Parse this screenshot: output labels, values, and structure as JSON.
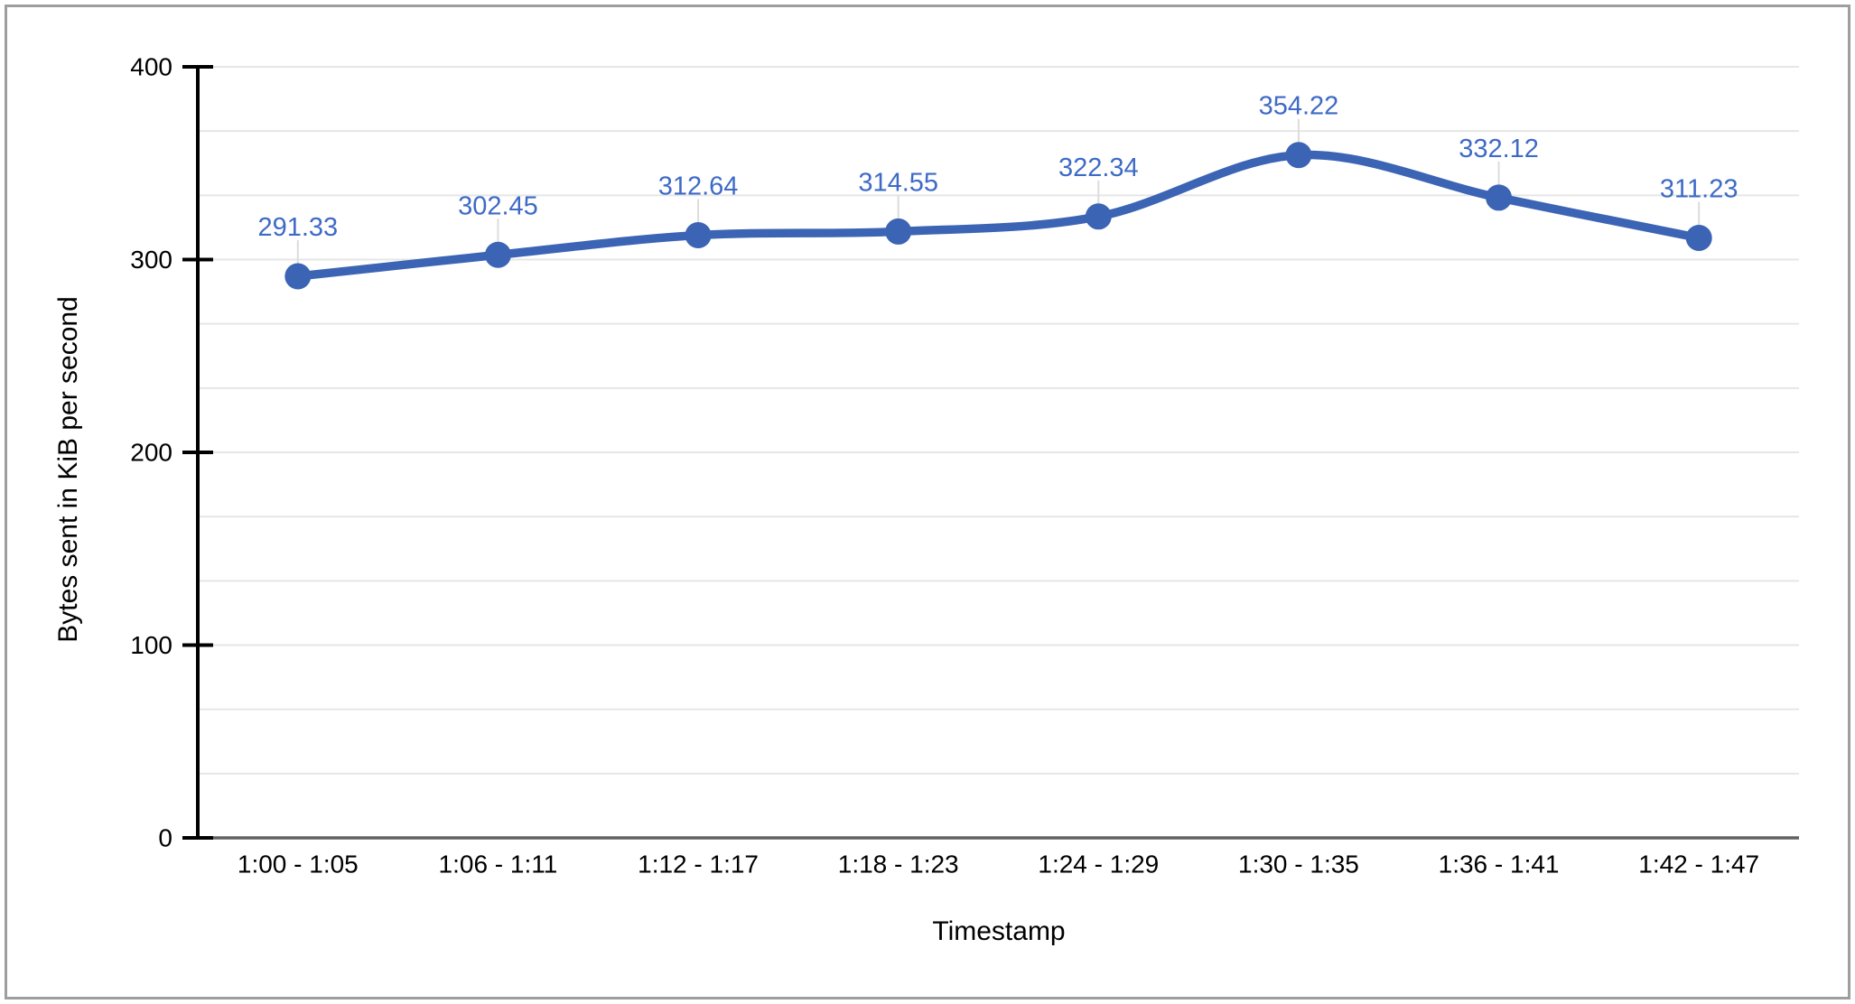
{
  "frame": {
    "border_color": "#9e9e9e"
  },
  "chart_data": {
    "type": "line",
    "categories": [
      "1:00 - 1:05",
      "1:06 - 1:11",
      "1:12 - 1:17",
      "1:18 - 1:23",
      "1:24 - 1:29",
      "1:30 - 1:35",
      "1:36 - 1:41",
      "1:42 - 1:47"
    ],
    "values": [
      291.33,
      302.45,
      312.64,
      314.55,
      322.34,
      354.22,
      332.12,
      311.23
    ],
    "point_labels": [
      "291.33",
      "302.45",
      "312.64",
      "314.55",
      "322.34",
      "354.22",
      "332.12",
      "311.23"
    ],
    "title": "",
    "xlabel": "Timestamp",
    "ylabel": "Bytes sent in KiB per second",
    "y_ticks": [
      0,
      100,
      200,
      300,
      400
    ],
    "ylim": [
      0,
      400
    ],
    "minor_gridlines_per_major": 3,
    "grid": true,
    "smooth": true,
    "legend": "none",
    "colors": {
      "line": "#3c64b4",
      "marker": "#3c64b4",
      "data_label": "#3e6ac6",
      "gridline": "#e6e6e6",
      "leader_line": "#dcdcdc",
      "axis_line": "#000000",
      "zero_baseline": "#616161",
      "tick_label": "#000000",
      "axis_title": "#000000"
    }
  }
}
